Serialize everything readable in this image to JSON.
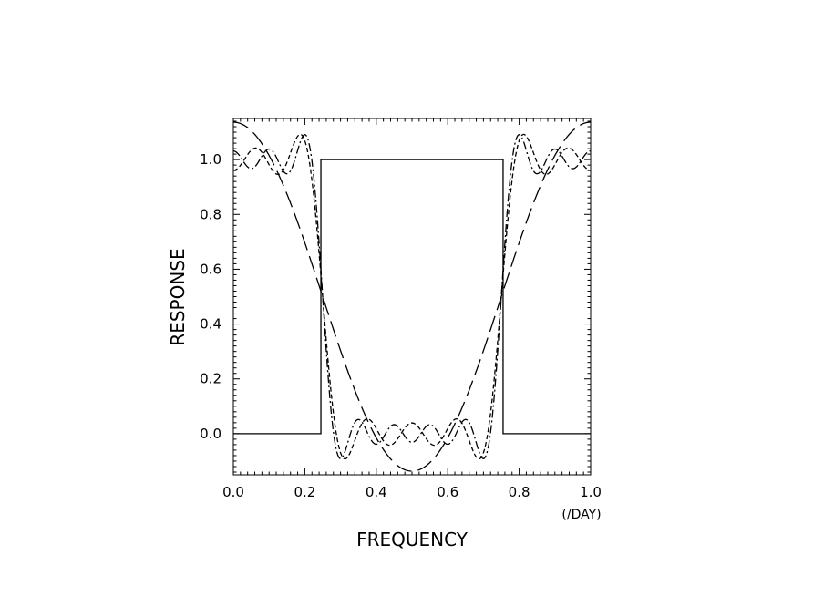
{
  "chart_data": {
    "type": "line",
    "title": "",
    "xlabel": "FREQUENCY",
    "ylabel": "RESPONSE",
    "x_unit": "(/DAY)",
    "xlim": [
      0.0,
      1.0
    ],
    "ylim": [
      -0.15,
      1.15
    ],
    "x_ticks": [
      "0.0",
      "0.2",
      "0.4",
      "0.6",
      "0.8",
      "1.0"
    ],
    "y_ticks": [
      "0.0",
      "0.2",
      "0.4",
      "0.6",
      "0.8",
      "1.0"
    ],
    "grid": false,
    "legend": "none",
    "ideal_band": {
      "lower_cutoff": 0.25,
      "upper_cutoff": 0.75,
      "passband_level": 1.0,
      "stopband_level": 0.0
    },
    "series": [
      {
        "style": "solid",
        "x": [
          0.0,
          0.245,
          0.245,
          0.755,
          0.755,
          1.0
        ],
        "y": [
          0.0,
          0.0,
          1.0,
          1.0,
          0.0,
          0.0
        ]
      },
      {
        "style": "long-dash",
        "truncation_terms": 2
      },
      {
        "style": "short-dash",
        "truncation_terms": 7
      },
      {
        "style": "dash-dot",
        "truncation_terms": 9
      }
    ]
  }
}
